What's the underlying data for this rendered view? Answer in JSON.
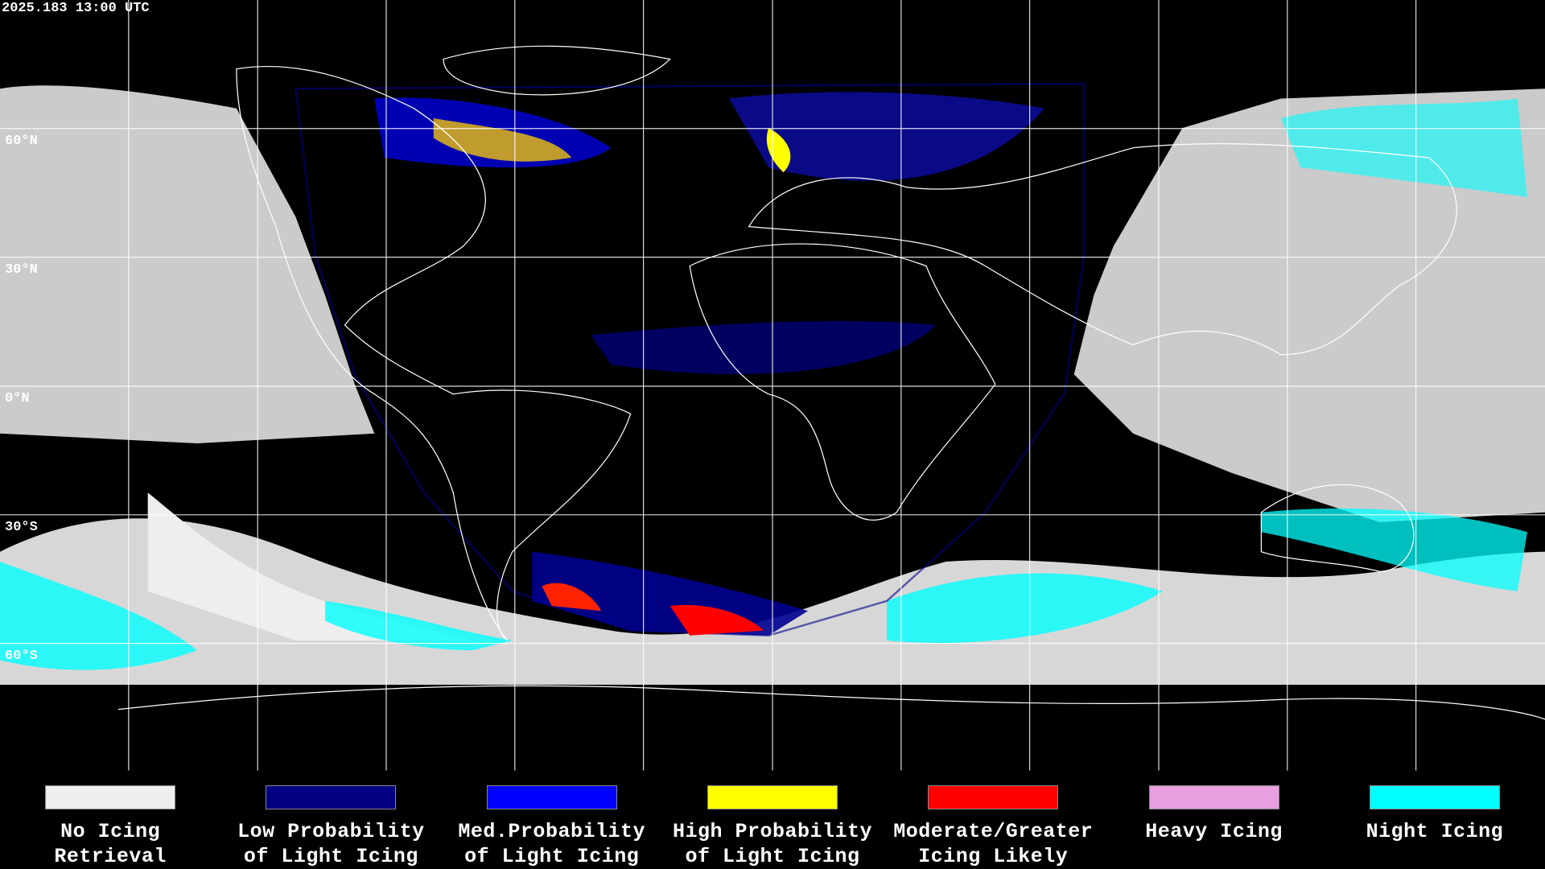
{
  "timestamp": "2025.183 13:00 UTC",
  "latitude_labels": [
    "60°N",
    "30°N",
    "0°N",
    "30°S",
    "60°S"
  ],
  "legend": [
    {
      "lines": [
        "No Icing",
        "Retrieval"
      ],
      "color": "#eeeeee"
    },
    {
      "lines": [
        "Low Probability",
        "of Light Icing"
      ],
      "color": "#000080"
    },
    {
      "lines": [
        "Med.Probability",
        "of Light Icing"
      ],
      "color": "#0000ff"
    },
    {
      "lines": [
        "High Probability",
        "of Light Icing"
      ],
      "color": "#ffff00"
    },
    {
      "lines": [
        "Moderate/Greater",
        "Icing Likely"
      ],
      "color": "#ff0000"
    },
    {
      "lines": [
        "Heavy Icing"
      ],
      "color": "#e8a0e0"
    },
    {
      "lines": [
        "Night Icing"
      ],
      "color": "#00ffff"
    }
  ]
}
